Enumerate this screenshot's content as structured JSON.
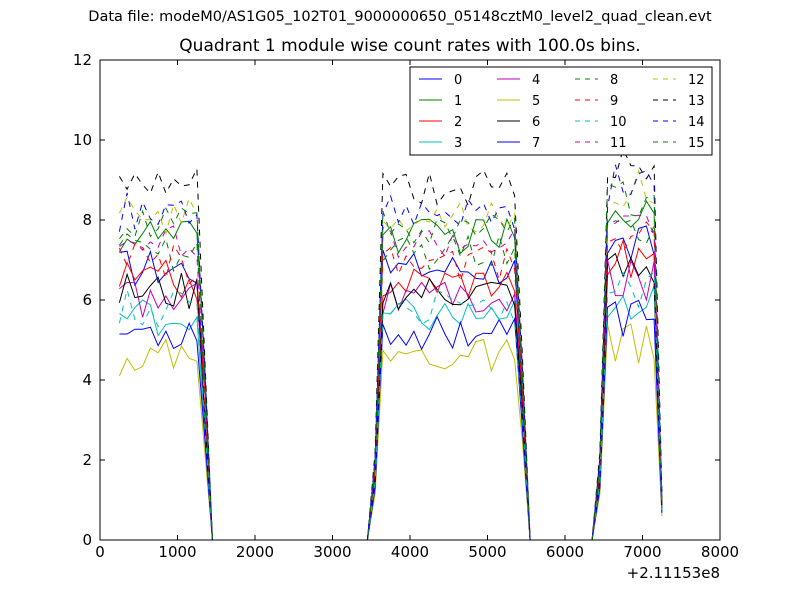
{
  "figure": {
    "suptitle": "Data file: modeM0/AS1G05_102T01_9000000650_05148cztM0_level2_quad_clean.evt"
  },
  "chart_data": {
    "type": "line",
    "title": "Quadrant 1 module wise count rates with 100.0s bins.",
    "xlabel": "",
    "ylabel": "",
    "x_offset_label": "+2.11153e8",
    "xlim": [
      0,
      8000
    ],
    "ylim": [
      0,
      12
    ],
    "xticks": [
      0,
      1000,
      2000,
      3000,
      4000,
      5000,
      6000,
      7000,
      8000
    ],
    "xtick_labels": [
      "0",
      "1000",
      "2000",
      "3000",
      "4000",
      "5000",
      "6000",
      "7000",
      "8000"
    ],
    "yticks": [
      0,
      2,
      4,
      6,
      8,
      10,
      12
    ],
    "ytick_labels": [
      "0",
      "2",
      "4",
      "6",
      "8",
      "10",
      "12"
    ],
    "grid": false,
    "legend_position": "top-right",
    "legend_columns": 4,
    "x": [
      250,
      350,
      450,
      550,
      650,
      750,
      850,
      950,
      1050,
      1150,
      1250,
      1350,
      1450,
      1550,
      1650,
      1750,
      1850,
      1950,
      2050,
      2150,
      2250,
      2350,
      2450,
      2550,
      2650,
      2750,
      2850,
      2950,
      3050,
      3150,
      3250,
      3350,
      3450,
      3550,
      3650,
      3750,
      3850,
      3950,
      4050,
      4150,
      4250,
      4350,
      4450,
      4550,
      4650,
      4750,
      4850,
      4950,
      5050,
      5150,
      5250,
      5350,
      5450,
      5550,
      5650,
      5750,
      5850,
      5950,
      6050,
      6150,
      6250,
      6350,
      6450,
      6550,
      6650,
      6750,
      6850,
      6950,
      7050,
      7150,
      7250
    ],
    "series": [
      {
        "name": "0",
        "color": "#0000ff",
        "dash": "solid",
        "base": 6.8
      },
      {
        "name": "1",
        "color": "#008000",
        "dash": "solid",
        "base": 7.6
      },
      {
        "name": "2",
        "color": "#ff0000",
        "dash": "solid",
        "base": 6.5
      },
      {
        "name": "3",
        "color": "#00bfbf",
        "dash": "solid",
        "base": 5.6
      },
      {
        "name": "4",
        "color": "#bf00bf",
        "dash": "solid",
        "base": 6.0
      },
      {
        "name": "5",
        "color": "#bfbf00",
        "dash": "solid",
        "base": 4.6
      },
      {
        "name": "6",
        "color": "#000000",
        "dash": "solid",
        "base": 6.2
      },
      {
        "name": "7",
        "color": "#0000ff",
        "dash": "solid",
        "base": 5.2
      },
      {
        "name": "8",
        "color": "#008000",
        "dash": "dashed",
        "base": 7.2
      },
      {
        "name": "9",
        "color": "#ff0000",
        "dash": "dashed",
        "base": 6.9
      },
      {
        "name": "10",
        "color": "#00bfbf",
        "dash": "dashed",
        "base": 5.8
      },
      {
        "name": "11",
        "color": "#bf00bf",
        "dash": "dashed",
        "base": 7.5
      },
      {
        "name": "12",
        "color": "#bfbf00",
        "dash": "dashed",
        "base": 8.1
      },
      {
        "name": "13",
        "color": "#000000",
        "dash": "dashed",
        "base": 8.8
      },
      {
        "name": "14",
        "color": "#0000ff",
        "dash": "dashed",
        "base": 8.2
      },
      {
        "name": "15",
        "color": "#008000",
        "dash": "dashed",
        "base": 7.8
      }
    ]
  }
}
